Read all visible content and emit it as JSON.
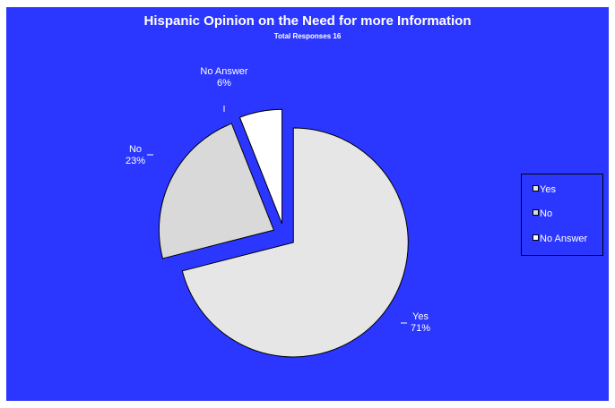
{
  "chart_data": {
    "type": "pie",
    "title": "Hispanic Opinion on the Need for more Information",
    "subtitle": "Total Responses 16",
    "categories": [
      "Yes",
      "No",
      "No Answer"
    ],
    "values": [
      71,
      23,
      6
    ],
    "labels": [
      {
        "name": "Yes",
        "pct": "71%"
      },
      {
        "name": "No",
        "pct": "23%"
      },
      {
        "name": "No Answer",
        "pct": "6%"
      }
    ],
    "colors": [
      "#e6e6e6",
      "#d9d9d9",
      "#ffffff"
    ],
    "background": "#2b37ff",
    "legend_position": "right",
    "exploded": true
  },
  "legend": {
    "items": [
      "Yes",
      "No",
      "No Answer"
    ]
  }
}
